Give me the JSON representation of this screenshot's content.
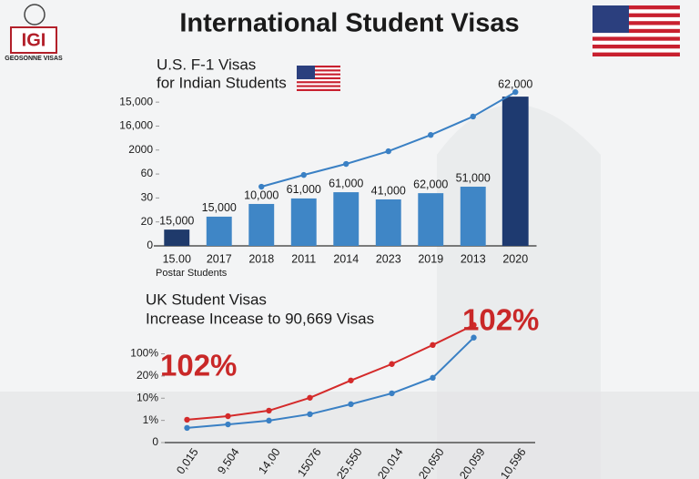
{
  "header": {
    "title": "International Student Visas",
    "logo": "IGI",
    "brand": "GEOSONNE VISAS"
  },
  "chart_data": [
    {
      "type": "bar",
      "title": [
        "U.S. F-1 Visas",
        "for Indian Students"
      ],
      "categories": [
        "15.00",
        "2017",
        "2018",
        "2011",
        "2014",
        "2023",
        "2019",
        "2013",
        "2020"
      ],
      "values": [
        0.68,
        1.22,
        1.75,
        1.98,
        2.24,
        1.94,
        2.2,
        2.47,
        6.23
      ],
      "bar_labels": [
        "15,000",
        "15,000",
        "10,000",
        "61,000",
        "61,000",
        "41,000",
        "62,000",
        "51,000",
        "62,000"
      ],
      "colors": [
        "#1f3a6b",
        "#3f86c6",
        "#3f86c6",
        "#3f86c6",
        "#3f86c6",
        "#3f86c6",
        "#3f86c6",
        "#3f86c6",
        "#1e3a70"
      ],
      "line": {
        "color": "#3a80c4",
        "values": [
          null,
          null,
          2.47,
          2.96,
          3.42,
          3.95,
          4.63,
          5.4,
          6.42
        ]
      },
      "x_note": "Postar Students",
      "ylim": [
        0,
        6.5
      ],
      "yticks": [
        0,
        {
          "value": 1,
          "label": "20"
        },
        {
          "value": 2,
          "label": "30"
        },
        {
          "value": 3,
          "label": "60"
        },
        {
          "value": 4,
          "label": "2000"
        },
        {
          "value": 5,
          "label": "16,000"
        },
        {
          "value": 6,
          "label": "15,000"
        }
      ]
    },
    {
      "type": "line",
      "title": [
        "UK Student Visas",
        "Increase Incease to 90,669 Visas"
      ],
      "categories": [
        "0,015",
        "9,504",
        "14,00",
        "15076",
        "25,550",
        "20,014",
        "20,650",
        "20,059",
        "10,596"
      ],
      "series": [
        {
          "color": "#d42a2a",
          "values": [
            1.03,
            1.19,
            1.44,
            2.02,
            2.8,
            3.54,
            4.4,
            5.3,
            null
          ]
        },
        {
          "color": "#3a80c4",
          "values": [
            0.66,
            0.82,
            0.99,
            1.28,
            1.73,
            2.22,
            2.92,
            4.73,
            null
          ]
        }
      ],
      "annotations": [
        "102%",
        "102%"
      ],
      "ylim": [
        0,
        5.5
      ],
      "yticks": [
        0,
        {
          "value": 1,
          "label": "1%"
        },
        {
          "value": 2,
          "label": "10%"
        },
        {
          "value": 3,
          "label": "20%"
        },
        {
          "value": 4,
          "label": "100%"
        }
      ]
    }
  ]
}
